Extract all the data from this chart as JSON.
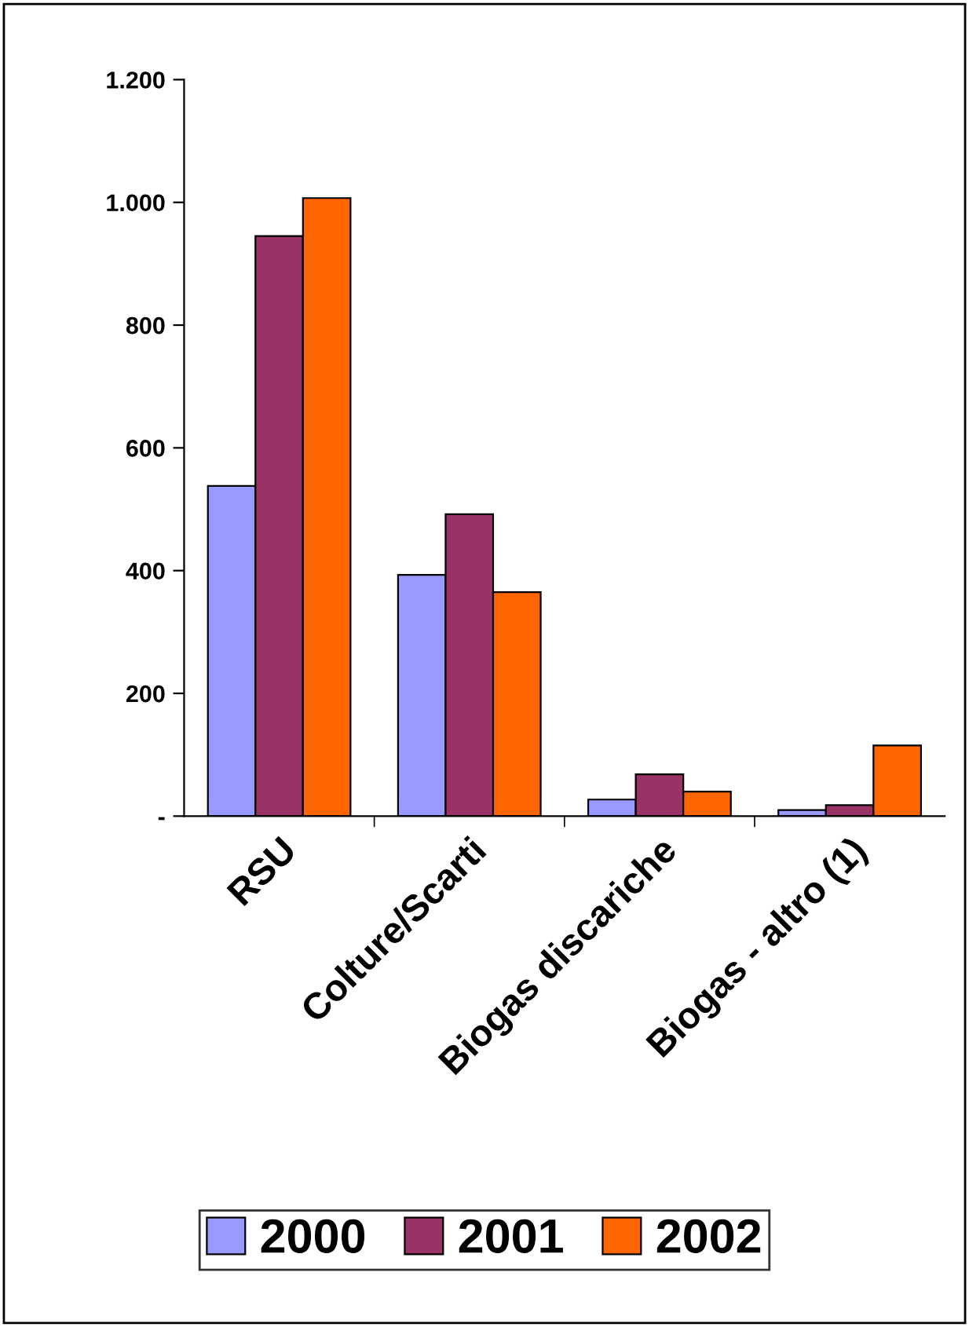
{
  "chart_data": {
    "type": "bar",
    "categories": [
      "RSU",
      "Colture/Scarti",
      "Biogas discariche",
      "Biogas - altro (1)"
    ],
    "series": [
      {
        "name": "2000",
        "color": "#9999ff",
        "values": [
          538,
          393,
          27,
          10
        ]
      },
      {
        "name": "2001",
        "color": "#993366",
        "values": [
          945,
          492,
          68,
          18
        ]
      },
      {
        "name": "2002",
        "color": "#ff6600",
        "values": [
          1007,
          365,
          40,
          115
        ]
      }
    ],
    "ylim": [
      0,
      1200
    ],
    "yticks": [
      {
        "value": 0,
        "label": "-"
      },
      200,
      400,
      600,
      800,
      {
        "value": 1000,
        "label": "1.000"
      },
      {
        "value": 1200,
        "label": "1.200"
      }
    ],
    "grid": false,
    "legend": "bottom"
  }
}
